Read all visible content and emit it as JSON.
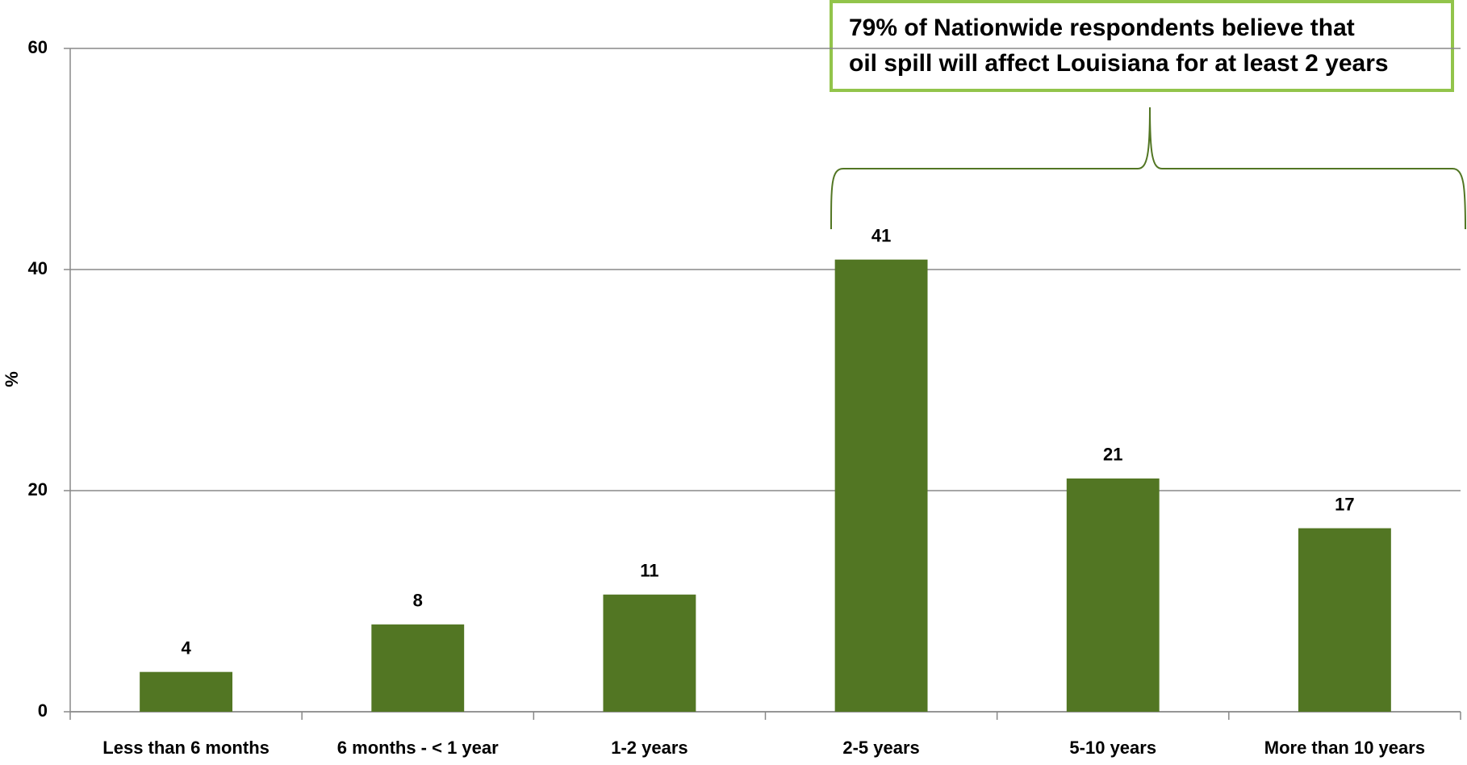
{
  "chart_data": {
    "type": "bar",
    "y_label": "%",
    "annotation": [
      "79% of Nationwide respondents believe that",
      "oil spill will affect Louisiana for at least 2 years"
    ],
    "categories": [
      "Less than 6 months",
      "6 months - < 1 year",
      "1-2 years",
      "2-5 years",
      "5-10 years",
      "More than 10 years"
    ],
    "values": [
      3.6,
      7.9,
      10.6,
      40.9,
      21.1,
      16.6
    ],
    "value_labels": [
      "4",
      "8",
      "11",
      "41",
      "21",
      "17"
    ],
    "color": "#527623",
    "ylim": [
      0,
      60
    ],
    "yticks": [
      0,
      20,
      40,
      60
    ],
    "grid": true
  }
}
